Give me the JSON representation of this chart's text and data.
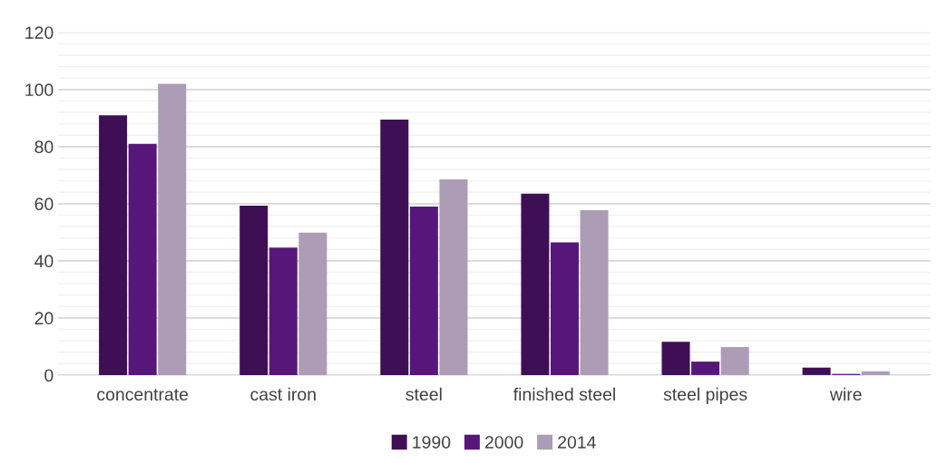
{
  "chart_data": {
    "type": "bar",
    "categories": [
      "concentrate",
      "cast iron",
      "steel",
      "finished steel",
      "steel pipes",
      "wire"
    ],
    "series": [
      {
        "name": "1990",
        "color": "#3f0f56",
        "values": [
          91,
          59.3,
          89.5,
          63.5,
          11.6,
          2.6
        ]
      },
      {
        "name": "2000",
        "color": "#57177a",
        "values": [
          81,
          44.6,
          59,
          46.5,
          4.7,
          0.4
        ]
      },
      {
        "name": "2014",
        "color": "#ad9cb5",
        "values": [
          102,
          49.9,
          68.5,
          57.7,
          9.8,
          1.3
        ]
      }
    ],
    "ylim": [
      0,
      120
    ],
    "yticks": [
      0,
      20,
      40,
      60,
      80,
      100,
      120
    ],
    "grid": "y",
    "legend": "bottom"
  }
}
